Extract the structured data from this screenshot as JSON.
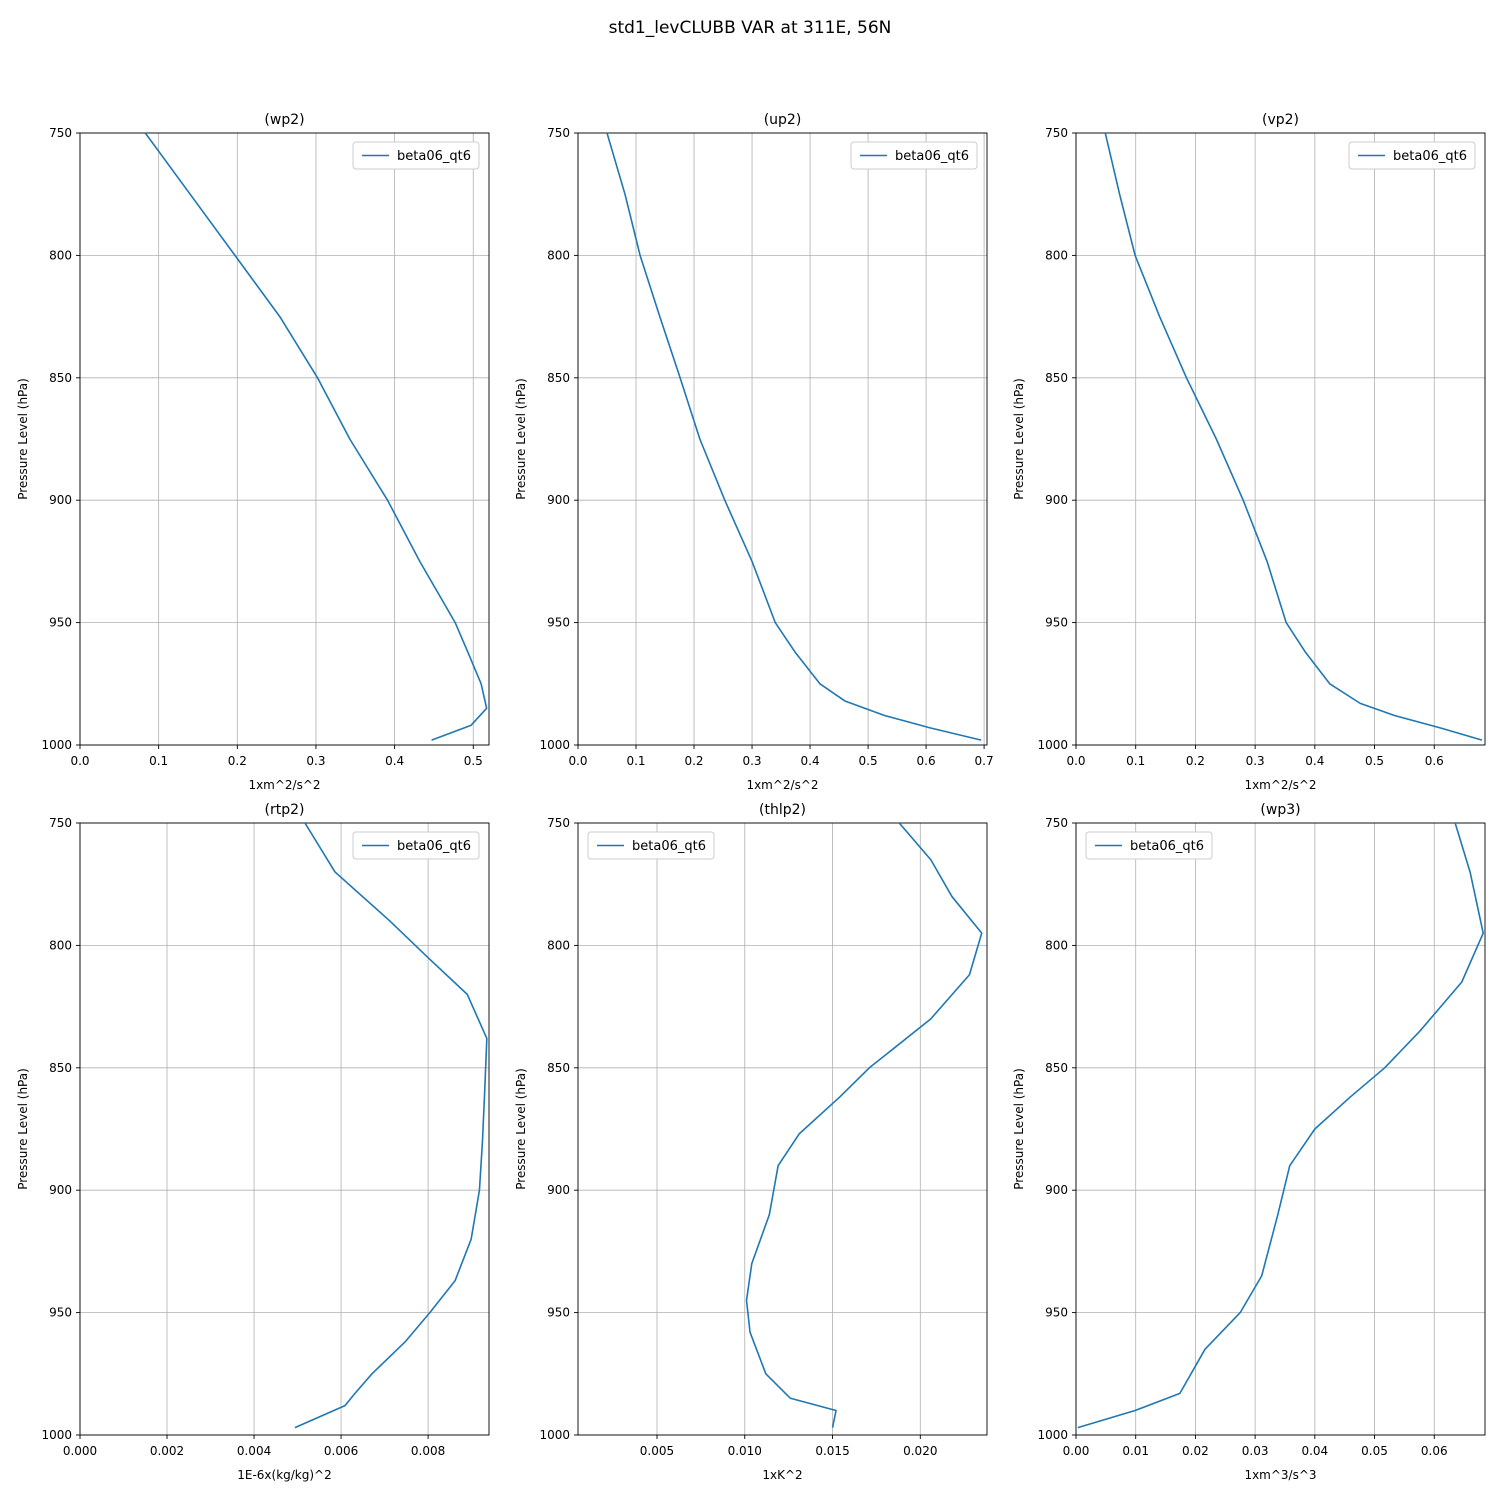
{
  "figure_title": "std1_levCLUBB VAR at 311E, 56N",
  "line_color": "#1f77b4",
  "grid_color": "#b0b0b0",
  "chart_data": [
    {
      "type": "line",
      "title": "(wp2)",
      "xlabel": "1xm^2/s^2",
      "ylabel": "Pressure Level (hPa)",
      "legend": [
        "beta06_qt6"
      ],
      "legend_pos": "top-right",
      "xlim": [
        0,
        0.52
      ],
      "ylim": [
        1000,
        750
      ],
      "xticks": [
        0,
        0.1,
        0.2,
        0.3,
        0.4,
        0.5
      ],
      "xtick_labels": [
        "0.0",
        "0.1",
        "0.2",
        "0.3",
        "0.4",
        "0.5"
      ],
      "yticks": [
        750,
        800,
        850,
        900,
        950,
        1000
      ],
      "series": [
        {
          "name": "beta06_qt6",
          "x": [
            0.083,
            0.14,
            0.197,
            0.254,
            0.302,
            0.343,
            0.391,
            0.432,
            0.477,
            0.493,
            0.51,
            0.517,
            0.497,
            0.447
          ],
          "y": [
            750,
            775,
            800,
            825,
            850,
            875,
            900,
            925,
            950,
            962,
            975,
            985,
            992,
            998
          ]
        }
      ]
    },
    {
      "type": "line",
      "title": "(up2)",
      "xlabel": "1xm^2/s^2",
      "ylabel": "Pressure Level (hPa)",
      "legend": [
        "beta06_qt6"
      ],
      "legend_pos": "top-right",
      "xlim": [
        0,
        0.705
      ],
      "ylim": [
        1000,
        750
      ],
      "xticks": [
        0,
        0.1,
        0.2,
        0.3,
        0.4,
        0.5,
        0.6,
        0.7
      ],
      "xtick_labels": [
        "0.0",
        "0.1",
        "0.2",
        "0.3",
        "0.4",
        "0.5",
        "0.6",
        "0.7"
      ],
      "yticks": [
        750,
        800,
        850,
        900,
        950,
        1000
      ],
      "series": [
        {
          "name": "beta06_qt6",
          "x": [
            0.05,
            0.081,
            0.107,
            0.141,
            0.176,
            0.21,
            0.253,
            0.3,
            0.34,
            0.374,
            0.417,
            0.46,
            0.529,
            0.607,
            0.695
          ],
          "y": [
            750,
            775,
            800,
            825,
            850,
            875,
            900,
            925,
            950,
            962,
            975,
            982,
            988,
            993,
            998
          ]
        }
      ]
    },
    {
      "type": "line",
      "title": "(vp2)",
      "xlabel": "1xm^2/s^2",
      "ylabel": "Pressure Level (hPa)",
      "legend": [
        "beta06_qt6"
      ],
      "legend_pos": "top-right",
      "xlim": [
        0,
        0.685
      ],
      "ylim": [
        1000,
        750
      ],
      "xticks": [
        0,
        0.1,
        0.2,
        0.3,
        0.4,
        0.5,
        0.6
      ],
      "xtick_labels": [
        "0.0",
        "0.1",
        "0.2",
        "0.3",
        "0.4",
        "0.5",
        "0.6"
      ],
      "yticks": [
        750,
        800,
        850,
        900,
        950,
        1000
      ],
      "series": [
        {
          "name": "beta06_qt6",
          "x": [
            0.049,
            0.073,
            0.099,
            0.14,
            0.185,
            0.235,
            0.28,
            0.32,
            0.352,
            0.384,
            0.425,
            0.476,
            0.534,
            0.61,
            0.68
          ],
          "y": [
            750,
            775,
            800,
            825,
            850,
            875,
            900,
            925,
            950,
            962,
            975,
            983,
            988,
            993,
            998
          ]
        }
      ]
    },
    {
      "type": "line",
      "title": "(rtp2)",
      "xlabel": "1E-6x(kg/kg)^2",
      "ylabel": "Pressure Level (hPa)",
      "legend": [
        "beta06_qt6"
      ],
      "legend_pos": "top-right",
      "xlim": [
        0,
        0.0094
      ],
      "ylim": [
        1000,
        750
      ],
      "xticks": [
        0,
        0.002,
        0.004,
        0.006,
        0.008
      ],
      "xtick_labels": [
        "0.000",
        "0.002",
        "0.004",
        "0.006",
        "0.008"
      ],
      "yticks": [
        750,
        800,
        850,
        900,
        950,
        1000
      ],
      "series": [
        {
          "name": "beta06_qt6",
          "x": [
            0.00517,
            0.00586,
            0.00712,
            0.008,
            0.0089,
            0.00935,
            0.0093,
            0.00925,
            0.00918,
            0.00899,
            0.00862,
            0.00804,
            0.00747,
            0.00671,
            0.00632,
            0.00609,
            0.00494
          ],
          "y": [
            750,
            770,
            790,
            805,
            820,
            838,
            860,
            880,
            900,
            920,
            937,
            950,
            962,
            975,
            983,
            988,
            997
          ]
        }
      ]
    },
    {
      "type": "line",
      "title": "(thlp2)",
      "xlabel": "1xK^2",
      "ylabel": "Pressure Level (hPa)",
      "legend": [
        "beta06_qt6"
      ],
      "legend_pos": "top-left",
      "xlim": [
        0.0005,
        0.0238
      ],
      "ylim": [
        1000,
        750
      ],
      "xticks": [
        0.005,
        0.01,
        0.015,
        0.02
      ],
      "xtick_labels": [
        "0.005",
        "0.010",
        "0.015",
        "0.020"
      ],
      "yticks": [
        750,
        800,
        850,
        900,
        950,
        1000
      ],
      "series": [
        {
          "name": "beta06_qt6",
          "x": [
            0.0188,
            0.0206,
            0.0218,
            0.0235,
            0.0228,
            0.0206,
            0.0171,
            0.0154,
            0.0131,
            0.0119,
            0.0114,
            0.0104,
            0.0101,
            0.0103,
            0.0112,
            0.0126,
            0.0152,
            0.015
          ],
          "y": [
            750,
            765,
            780,
            795,
            812,
            830,
            850,
            862,
            877,
            890,
            910,
            930,
            945,
            958,
            975,
            985,
            990,
            997
          ]
        }
      ]
    },
    {
      "type": "line",
      "title": "(wp3)",
      "xlabel": "1xm^3/s^3",
      "ylabel": "Pressure Level (hPa)",
      "legend": [
        "beta06_qt6"
      ],
      "legend_pos": "top-left",
      "xlim": [
        0,
        0.0685
      ],
      "ylim": [
        1000,
        750
      ],
      "xticks": [
        0,
        0.01,
        0.02,
        0.03,
        0.04,
        0.05,
        0.06
      ],
      "xtick_labels": [
        "0.00",
        "0.01",
        "0.02",
        "0.03",
        "0.04",
        "0.05",
        "0.06"
      ],
      "yticks": [
        750,
        800,
        850,
        900,
        950,
        1000
      ],
      "series": [
        {
          "name": "beta06_qt6",
          "x": [
            0.0635,
            0.066,
            0.0682,
            0.0646,
            0.0576,
            0.0517,
            0.0459,
            0.04,
            0.0358,
            0.0338,
            0.0311,
            0.0275,
            0.0216,
            0.0174,
            0.0099,
            0.0003
          ],
          "y": [
            750,
            770,
            795,
            815,
            835,
            850,
            862,
            875,
            890,
            910,
            935,
            950,
            965,
            983,
            990,
            997
          ]
        }
      ]
    }
  ]
}
